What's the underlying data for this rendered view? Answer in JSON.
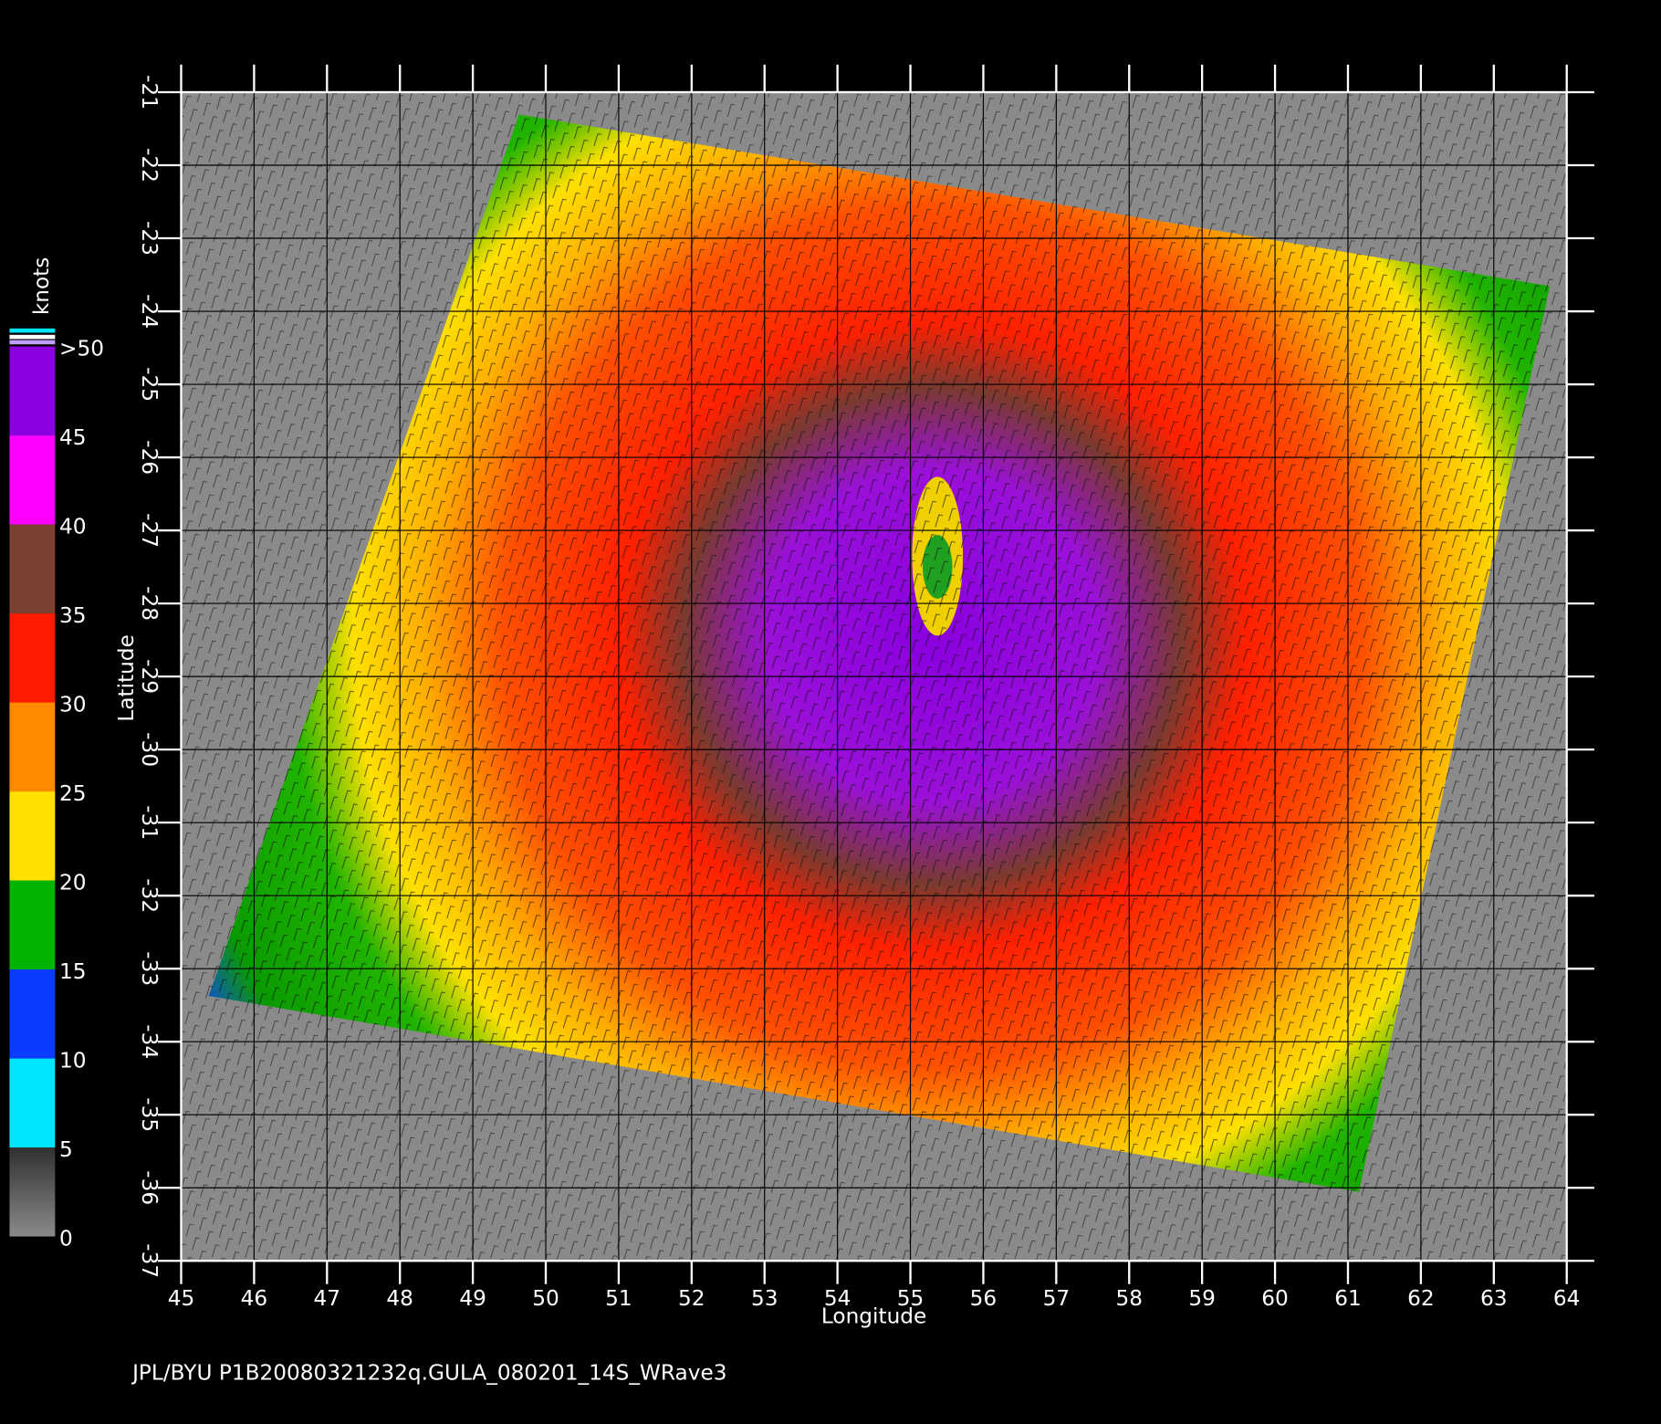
{
  "map": {
    "x_label": "Longitude",
    "y_label": "Latitude",
    "xlim": [
      45,
      64
    ],
    "ylim": [
      -37,
      -21
    ],
    "xticks": [
      45,
      46,
      47,
      48,
      49,
      50,
      51,
      52,
      53,
      54,
      55,
      56,
      57,
      58,
      59,
      60,
      61,
      62,
      63,
      64
    ],
    "yticks": [
      -21,
      -22,
      -23,
      -24,
      -25,
      -26,
      -27,
      -28,
      -29,
      -30,
      -31,
      -32,
      -33,
      -34,
      -35,
      -36,
      -37
    ],
    "grid": true,
    "colorbar": {
      "unit": "knots",
      "lim": [
        0,
        50
      ],
      "ticks": [
        0,
        5,
        10,
        15,
        20,
        25,
        30,
        35,
        40,
        45,
        {
          "value": 50,
          "label": ">50"
        }
      ],
      "colors": [
        "#5a5a5a",
        "#00e5ff",
        "#0a3cff",
        "#00b400",
        "#ffe000",
        "#ff8a00",
        "#ff1a00",
        "#7a4030",
        "#ff00ff",
        "#8a00e0"
      ]
    }
  },
  "footer": "JPL/BYU  P1B20080321232q.GULA_080201_14S_WRave3"
}
